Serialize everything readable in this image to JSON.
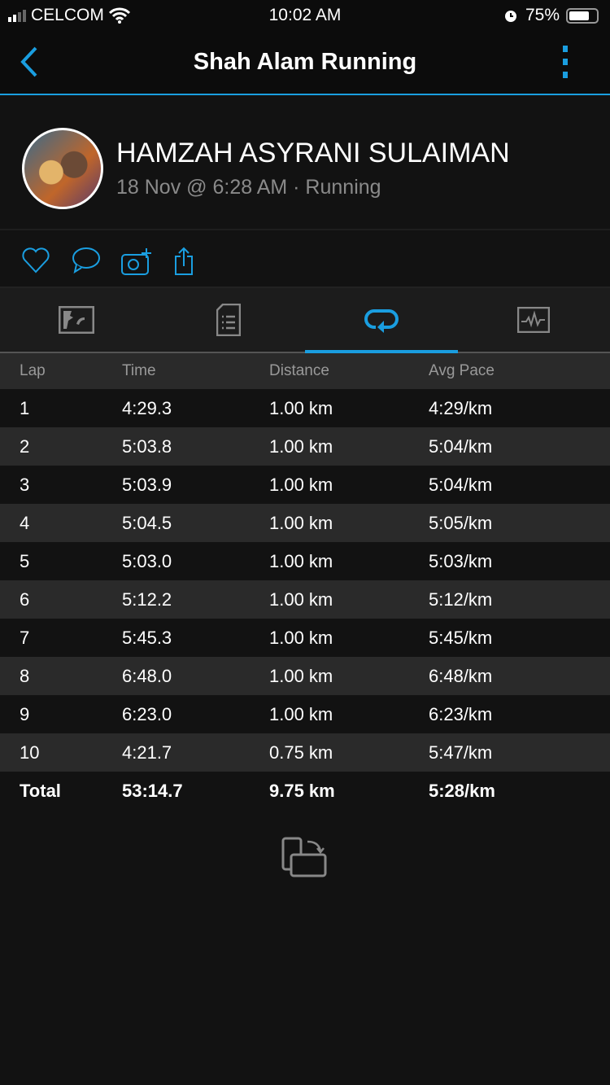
{
  "status": {
    "carrier": "CELCOM",
    "time": "10:02 AM",
    "battery": "75%",
    "battery_level": 0.75
  },
  "nav": {
    "title": "Shah Alam Running"
  },
  "profile": {
    "name": "HAMZAH ASYRANI SULAIMAN",
    "subtitle": "18 Nov @ 6:28 AM · Running"
  },
  "accent": "#1a9ee0",
  "tabs": [
    "map-icon",
    "details-icon",
    "laps-icon",
    "charts-icon"
  ],
  "active_tab": 2,
  "table": {
    "headers": [
      "Lap",
      "Time",
      "Distance",
      "Avg Pace"
    ],
    "rows": [
      [
        "1",
        "4:29.3",
        "1.00 km",
        "4:29/km"
      ],
      [
        "2",
        "5:03.8",
        "1.00 km",
        "5:04/km"
      ],
      [
        "3",
        "5:03.9",
        "1.00 km",
        "5:04/km"
      ],
      [
        "4",
        "5:04.5",
        "1.00 km",
        "5:05/km"
      ],
      [
        "5",
        "5:03.0",
        "1.00 km",
        "5:03/km"
      ],
      [
        "6",
        "5:12.2",
        "1.00 km",
        "5:12/km"
      ],
      [
        "7",
        "5:45.3",
        "1.00 km",
        "5:45/km"
      ],
      [
        "8",
        "6:48.0",
        "1.00 km",
        "6:48/km"
      ],
      [
        "9",
        "6:23.0",
        "1.00 km",
        "6:23/km"
      ],
      [
        "10",
        "4:21.7",
        "0.75 km",
        "5:47/km"
      ]
    ],
    "total": [
      "Total",
      "53:14.7",
      "9.75 km",
      "5:28/km"
    ]
  }
}
